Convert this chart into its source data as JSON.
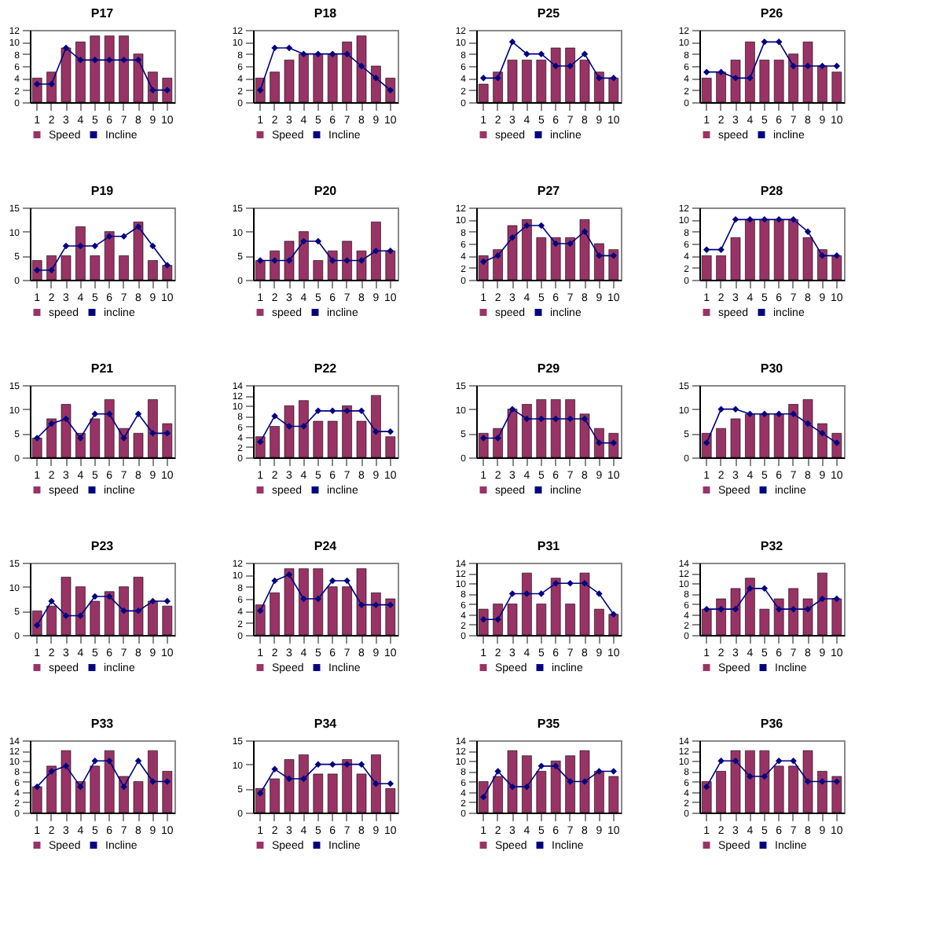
{
  "chart_data": [
    {
      "type": "bar",
      "title": "P17",
      "categories": [
        "1",
        "2",
        "3",
        "4",
        "5",
        "6",
        "7",
        "8",
        "9",
        "10"
      ],
      "ylim": [
        0,
        12
      ],
      "yticks": [
        0,
        2,
        4,
        6,
        8,
        10,
        12
      ],
      "legend": "bottom",
      "marker": "diamond",
      "series": [
        {
          "name": "Speed",
          "color": "#993366",
          "values": [
            4,
            5,
            9,
            10,
            11,
            11,
            11,
            8,
            5,
            4
          ]
        },
        {
          "name": "Incline",
          "type": "line",
          "color": "#000080",
          "values": [
            3,
            3,
            9,
            7,
            7,
            7,
            7,
            7,
            2,
            2
          ]
        }
      ]
    },
    {
      "type": "bar",
      "title": "P18",
      "categories": [
        "1",
        "2",
        "3",
        "4",
        "5",
        "6",
        "7",
        "8",
        "9",
        "10"
      ],
      "ylim": [
        0,
        12
      ],
      "yticks": [
        0,
        2,
        4,
        6,
        8,
        10,
        12
      ],
      "legend": "bottom",
      "marker": "diamond",
      "series": [
        {
          "name": "Speed",
          "color": "#993366",
          "values": [
            4,
            5,
            7,
            8,
            8,
            8,
            10,
            11,
            6,
            4
          ]
        },
        {
          "name": "Incline",
          "type": "line",
          "color": "#000080",
          "values": [
            2,
            9,
            9,
            8,
            8,
            8,
            8,
            6,
            4,
            2
          ]
        }
      ]
    },
    {
      "type": "bar",
      "title": "P25",
      "categories": [
        "1",
        "2",
        "3",
        "4",
        "5",
        "6",
        "7",
        "8",
        "9",
        "10"
      ],
      "ylim": [
        0,
        12
      ],
      "yticks": [
        0,
        2,
        4,
        6,
        8,
        10,
        12
      ],
      "legend": "bottom",
      "marker": "diamond",
      "series": [
        {
          "name": "speed",
          "color": "#993366",
          "values": [
            3,
            5,
            7,
            7,
            7,
            9,
            9,
            7,
            5,
            4
          ]
        },
        {
          "name": "incline",
          "type": "line",
          "color": "#000080",
          "values": [
            4,
            4,
            10,
            8,
            8,
            6,
            6,
            8,
            4,
            4
          ]
        }
      ]
    },
    {
      "type": "bar",
      "title": "P26",
      "categories": [
        "1",
        "2",
        "3",
        "4",
        "5",
        "6",
        "7",
        "8",
        "9",
        "10"
      ],
      "ylim": [
        0,
        12
      ],
      "yticks": [
        0,
        2,
        4,
        6,
        8,
        10,
        12
      ],
      "legend": "bottom",
      "marker": "diamond",
      "series": [
        {
          "name": "speed",
          "color": "#993366",
          "values": [
            4,
            5,
            7,
            10,
            7,
            7,
            8,
            10,
            6,
            5
          ]
        },
        {
          "name": "incline",
          "type": "line",
          "color": "#000080",
          "values": [
            5,
            5,
            4,
            4,
            10,
            10,
            6,
            6,
            6,
            6
          ]
        }
      ]
    },
    {
      "type": "bar",
      "title": "P19",
      "categories": [
        "1",
        "2",
        "3",
        "4",
        "5",
        "6",
        "7",
        "8",
        "9",
        "10"
      ],
      "ylim": [
        0,
        15
      ],
      "yticks": [
        0,
        5,
        10,
        15
      ],
      "legend": "bottom",
      "marker": "diamond",
      "series": [
        {
          "name": "speed",
          "color": "#993366",
          "values": [
            4,
            5,
            5,
            11,
            5,
            10,
            5,
            12,
            4,
            3
          ]
        },
        {
          "name": "incline",
          "type": "line",
          "color": "#000080",
          "values": [
            2,
            2,
            7,
            7,
            7,
            9,
            9,
            11,
            7,
            3
          ]
        }
      ]
    },
    {
      "type": "bar",
      "title": "P20",
      "categories": [
        "1",
        "2",
        "3",
        "4",
        "5",
        "6",
        "7",
        "8",
        "9",
        "10"
      ],
      "ylim": [
        0,
        15
      ],
      "yticks": [
        0,
        5,
        10,
        15
      ],
      "legend": "bottom",
      "marker": "diamond",
      "series": [
        {
          "name": "speed",
          "color": "#993366",
          "values": [
            4,
            6,
            8,
            10,
            4,
            6,
            8,
            6,
            12,
            6
          ]
        },
        {
          "name": "incline",
          "type": "line",
          "color": "#000080",
          "values": [
            4,
            4,
            4,
            8,
            8,
            4,
            4,
            4,
            6,
            6
          ]
        }
      ]
    },
    {
      "type": "bar",
      "title": "P27",
      "categories": [
        "1",
        "2",
        "3",
        "4",
        "5",
        "6",
        "7",
        "8",
        "9",
        "10"
      ],
      "ylim": [
        0,
        12
      ],
      "yticks": [
        0,
        2,
        4,
        6,
        8,
        10,
        12
      ],
      "legend": "bottom",
      "marker": "diamond",
      "series": [
        {
          "name": "speed",
          "color": "#993366",
          "values": [
            4,
            5,
            9,
            10,
            7,
            7,
            7,
            10,
            6,
            5
          ]
        },
        {
          "name": "incline",
          "type": "line",
          "color": "#000080",
          "values": [
            3,
            4,
            7,
            9,
            9,
            6,
            6,
            8,
            4,
            4
          ]
        }
      ]
    },
    {
      "type": "bar",
      "title": "P28",
      "categories": [
        "1",
        "2",
        "3",
        "4",
        "5",
        "6",
        "7",
        "8",
        "9",
        "10"
      ],
      "ylim": [
        0,
        12
      ],
      "yticks": [
        0,
        2,
        4,
        6,
        8,
        10,
        12
      ],
      "legend": "bottom",
      "marker": "diamond",
      "series": [
        {
          "name": "speed",
          "color": "#993366",
          "values": [
            4,
            4,
            7,
            10,
            10,
            10,
            10,
            7,
            5,
            4
          ]
        },
        {
          "name": "incline",
          "type": "line",
          "color": "#000080",
          "values": [
            5,
            5,
            10,
            10,
            10,
            10,
            10,
            8,
            4,
            4
          ]
        }
      ]
    },
    {
      "type": "bar",
      "title": "P21",
      "categories": [
        "1",
        "2",
        "3",
        "4",
        "5",
        "6",
        "7",
        "8",
        "9",
        "10"
      ],
      "ylim": [
        0,
        15
      ],
      "yticks": [
        0,
        5,
        10,
        15
      ],
      "legend": "bottom",
      "marker": "diamond",
      "series": [
        {
          "name": "speed",
          "color": "#993366",
          "values": [
            4,
            8,
            11,
            5,
            8,
            12,
            6,
            5,
            12,
            7
          ]
        },
        {
          "name": "incline",
          "type": "line",
          "color": "#000080",
          "values": [
            4,
            7,
            8,
            4,
            9,
            9,
            4,
            9,
            5,
            5
          ]
        }
      ]
    },
    {
      "type": "bar",
      "title": "P22",
      "categories": [
        "1",
        "2",
        "3",
        "4",
        "5",
        "6",
        "7",
        "8",
        "9",
        "10"
      ],
      "ylim": [
        0,
        14
      ],
      "yticks": [
        0,
        2,
        4,
        6,
        8,
        10,
        12,
        14
      ],
      "legend": "bottom",
      "marker": "diamond",
      "series": [
        {
          "name": "speed",
          "color": "#993366",
          "values": [
            4,
            6,
            10,
            11,
            7,
            7,
            10,
            7,
            12,
            4
          ]
        },
        {
          "name": "incline",
          "type": "line",
          "color": "#000080",
          "values": [
            3,
            8,
            6,
            6,
            9,
            9,
            9,
            9,
            5,
            5
          ]
        }
      ]
    },
    {
      "type": "bar",
      "title": "P29",
      "categories": [
        "1",
        "2",
        "3",
        "4",
        "5",
        "6",
        "7",
        "8",
        "9",
        "10"
      ],
      "ylim": [
        0,
        15
      ],
      "yticks": [
        0,
        5,
        10,
        15
      ],
      "legend": "bottom",
      "marker": "diamond",
      "series": [
        {
          "name": "speed",
          "color": "#993366",
          "values": [
            5,
            6,
            10,
            11,
            12,
            12,
            12,
            9,
            6,
            5
          ]
        },
        {
          "name": "incline",
          "type": "line",
          "color": "#000080",
          "values": [
            4,
            4,
            10,
            8,
            8,
            8,
            8,
            8,
            3,
            3
          ]
        }
      ]
    },
    {
      "type": "bar",
      "title": "P30",
      "categories": [
        "1",
        "2",
        "3",
        "4",
        "5",
        "6",
        "7",
        "8",
        "9",
        "10"
      ],
      "ylim": [
        0,
        15
      ],
      "yticks": [
        0,
        5,
        10,
        15
      ],
      "legend": "bottom",
      "marker": "diamond",
      "series": [
        {
          "name": "Speed",
          "color": "#993366",
          "values": [
            5,
            6,
            8,
            9,
            9,
            9,
            11,
            12,
            7,
            5
          ]
        },
        {
          "name": "incline",
          "type": "line",
          "color": "#000080",
          "values": [
            3,
            10,
            10,
            9,
            9,
            9,
            9,
            7,
            5,
            3
          ]
        }
      ]
    },
    {
      "type": "bar",
      "title": "P23",
      "categories": [
        "1",
        "2",
        "3",
        "4",
        "5",
        "6",
        "7",
        "8",
        "9",
        "10"
      ],
      "ylim": [
        0,
        15
      ],
      "yticks": [
        0,
        5,
        10,
        15
      ],
      "legend": "bottom",
      "marker": "diamond",
      "series": [
        {
          "name": "speed",
          "color": "#993366",
          "values": [
            5,
            6,
            12,
            10,
            7,
            9,
            10,
            12,
            7,
            6
          ]
        },
        {
          "name": "incline",
          "type": "line",
          "color": "#000080",
          "values": [
            2,
            7,
            4,
            4,
            8,
            8,
            5,
            5,
            7,
            7
          ]
        }
      ]
    },
    {
      "type": "bar",
      "title": "P24",
      "categories": [
        "1",
        "2",
        "3",
        "4",
        "5",
        "6",
        "7",
        "8",
        "9",
        "10"
      ],
      "ylim": [
        0,
        12
      ],
      "yticks": [
        0,
        2,
        4,
        6,
        8,
        10,
        12
      ],
      "legend": "bottom",
      "marker": "diamond",
      "series": [
        {
          "name": "Speed",
          "color": "#993366",
          "values": [
            5,
            7,
            11,
            11,
            11,
            8,
            8,
            11,
            7,
            6
          ]
        },
        {
          "name": "Incline",
          "type": "line",
          "color": "#000080",
          "values": [
            4,
            9,
            10,
            6,
            6,
            9,
            9,
            5,
            5,
            5
          ]
        }
      ]
    },
    {
      "type": "bar",
      "title": "P31",
      "categories": [
        "1",
        "2",
        "3",
        "4",
        "5",
        "6",
        "7",
        "8",
        "9",
        "10"
      ],
      "ylim": [
        0,
        14
      ],
      "yticks": [
        0,
        2,
        4,
        6,
        8,
        10,
        12,
        14
      ],
      "legend": "bottom",
      "marker": "diamond",
      "series": [
        {
          "name": "Speed",
          "color": "#993366",
          "values": [
            5,
            6,
            6,
            12,
            6,
            11,
            6,
            12,
            5,
            4
          ]
        },
        {
          "name": "incline",
          "type": "line",
          "color": "#000080",
          "values": [
            3,
            3,
            8,
            8,
            8,
            10,
            10,
            10,
            8,
            4
          ]
        }
      ]
    },
    {
      "type": "bar",
      "title": "P32",
      "categories": [
        "1",
        "2",
        "3",
        "4",
        "5",
        "6",
        "7",
        "8",
        "9",
        "10"
      ],
      "ylim": [
        0,
        14
      ],
      "yticks": [
        0,
        2,
        4,
        6,
        8,
        10,
        12,
        14
      ],
      "legend": "bottom",
      "marker": "diamond",
      "series": [
        {
          "name": "Speed",
          "color": "#993366",
          "values": [
            5,
            7,
            9,
            11,
            5,
            7,
            9,
            7,
            12,
            7
          ]
        },
        {
          "name": "Incline",
          "type": "line",
          "color": "#000080",
          "values": [
            5,
            5,
            5,
            9,
            9,
            5,
            5,
            5,
            7,
            7
          ]
        }
      ]
    },
    {
      "type": "bar",
      "title": "P33",
      "categories": [
        "1",
        "2",
        "3",
        "4",
        "5",
        "6",
        "7",
        "8",
        "9",
        "10"
      ],
      "ylim": [
        0,
        14
      ],
      "yticks": [
        0,
        2,
        4,
        6,
        8,
        10,
        12,
        14
      ],
      "legend": "bottom",
      "marker": "diamond",
      "series": [
        {
          "name": "Speed",
          "color": "#993366",
          "values": [
            5,
            9,
            12,
            6,
            9,
            12,
            7,
            6,
            12,
            8
          ]
        },
        {
          "name": "Incline",
          "type": "line",
          "color": "#000080",
          "values": [
            5,
            8,
            9,
            5,
            10,
            10,
            5,
            10,
            6,
            6
          ]
        }
      ]
    },
    {
      "type": "bar",
      "title": "P34",
      "categories": [
        "1",
        "2",
        "3",
        "4",
        "5",
        "6",
        "7",
        "8",
        "9",
        "10"
      ],
      "ylim": [
        0,
        15
      ],
      "yticks": [
        0,
        5,
        10,
        15
      ],
      "legend": "bottom",
      "marker": "diamond",
      "series": [
        {
          "name": "Speed",
          "color": "#993366",
          "values": [
            5,
            7,
            11,
            12,
            8,
            8,
            11,
            8,
            12,
            5
          ]
        },
        {
          "name": "Incline",
          "type": "line",
          "color": "#000080",
          "values": [
            4,
            9,
            7,
            7,
            10,
            10,
            10,
            10,
            6,
            6
          ]
        }
      ]
    },
    {
      "type": "bar",
      "title": "P35",
      "categories": [
        "1",
        "2",
        "3",
        "4",
        "5",
        "6",
        "7",
        "8",
        "9",
        "10"
      ],
      "ylim": [
        0,
        14
      ],
      "yticks": [
        0,
        2,
        4,
        6,
        8,
        10,
        12,
        14
      ],
      "legend": "bottom",
      "marker": "diamond",
      "series": [
        {
          "name": "Speed",
          "color": "#993366",
          "values": [
            6,
            7,
            12,
            11,
            8,
            10,
            11,
            12,
            8,
            7
          ]
        },
        {
          "name": "Incline",
          "type": "line",
          "color": "#000080",
          "values": [
            3,
            8,
            5,
            5,
            9,
            9,
            6,
            6,
            8,
            8
          ]
        }
      ]
    },
    {
      "type": "bar",
      "title": "P36",
      "categories": [
        "1",
        "2",
        "3",
        "4",
        "5",
        "6",
        "7",
        "8",
        "9",
        "10"
      ],
      "ylim": [
        0,
        14
      ],
      "yticks": [
        0,
        2,
        4,
        6,
        8,
        10,
        12,
        14
      ],
      "legend": "bottom",
      "marker": "diamond",
      "series": [
        {
          "name": "Speed",
          "color": "#993366",
          "values": [
            6,
            8,
            12,
            12,
            12,
            9,
            9,
            12,
            8,
            7
          ]
        },
        {
          "name": "Incline",
          "type": "line",
          "color": "#000080",
          "values": [
            5,
            10,
            10,
            7,
            7,
            10,
            10,
            6,
            6,
            6
          ]
        }
      ]
    }
  ]
}
